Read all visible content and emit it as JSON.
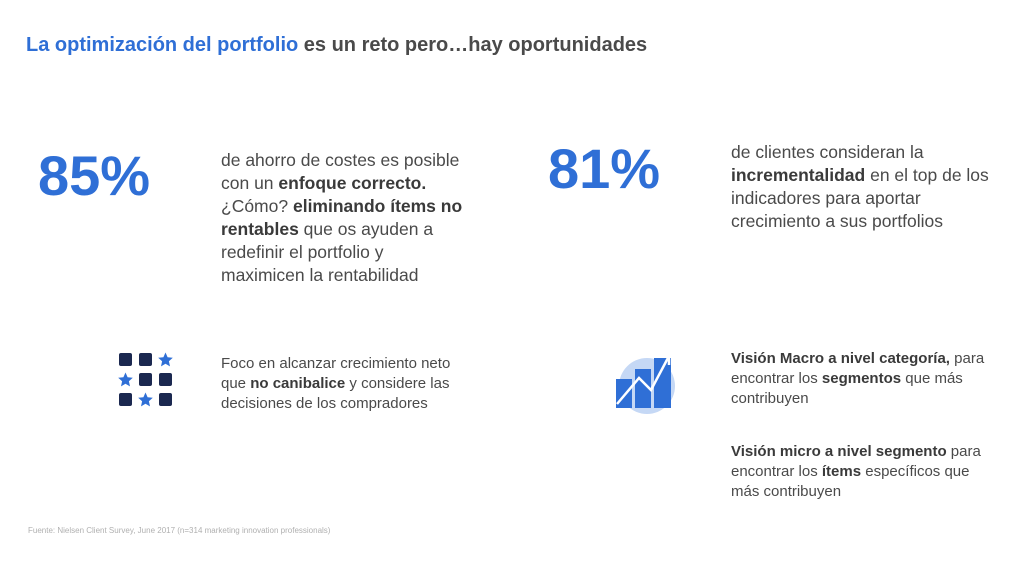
{
  "header": {
    "title_highlight": "La optimización del portfolio",
    "title_rest": "es un reto pero…hay oportunidades"
  },
  "left": {
    "stat_value": "85%",
    "stat_p1": "de ahorro de costes es posible con un ",
    "stat_b1": "enfoque correcto.",
    "stat_p2": " ¿Cómo? ",
    "stat_b2": "eliminando  ítems no rentables",
    "stat_p3": " que os ayuden a redefinir el portfolio y maximicen la rentabilidad",
    "feature_p1": "Foco en alcanzar crecimiento neto que ",
    "feature_b1": "no canibalice",
    "feature_p2": " y considere las decisiones de los compradores"
  },
  "right": {
    "stat_value": "81%",
    "stat_p1": "de clientes consideran la ",
    "stat_b1": "incrementalidad",
    "stat_p2": " en el top de los indicadores para aportar crecimiento a sus portfolios",
    "feature1_b1": "Visión  Macro a nivel categoría,",
    "feature1_p1": " para encontrar los ",
    "feature1_b2": "segmentos",
    "feature1_p2": " que más contribuyen",
    "feature2_b1": "Visión  micro a nivel segmento",
    "feature2_p1": " para encontrar los ",
    "feature2_b2": "ítems",
    "feature2_p2": " específicos que más contribuyen"
  },
  "footer": {
    "source": "Fuente: Nielsen Client Survey, June 2017 (n=314 marketing innovation professionals)"
  },
  "icons": {
    "grid": "squares-stars-grid-icon",
    "chart": "growth-chart-icon"
  },
  "colors": {
    "accent": "#2f6fd6",
    "navy": "#1b2850",
    "light_blue": "#c5d8f5"
  }
}
